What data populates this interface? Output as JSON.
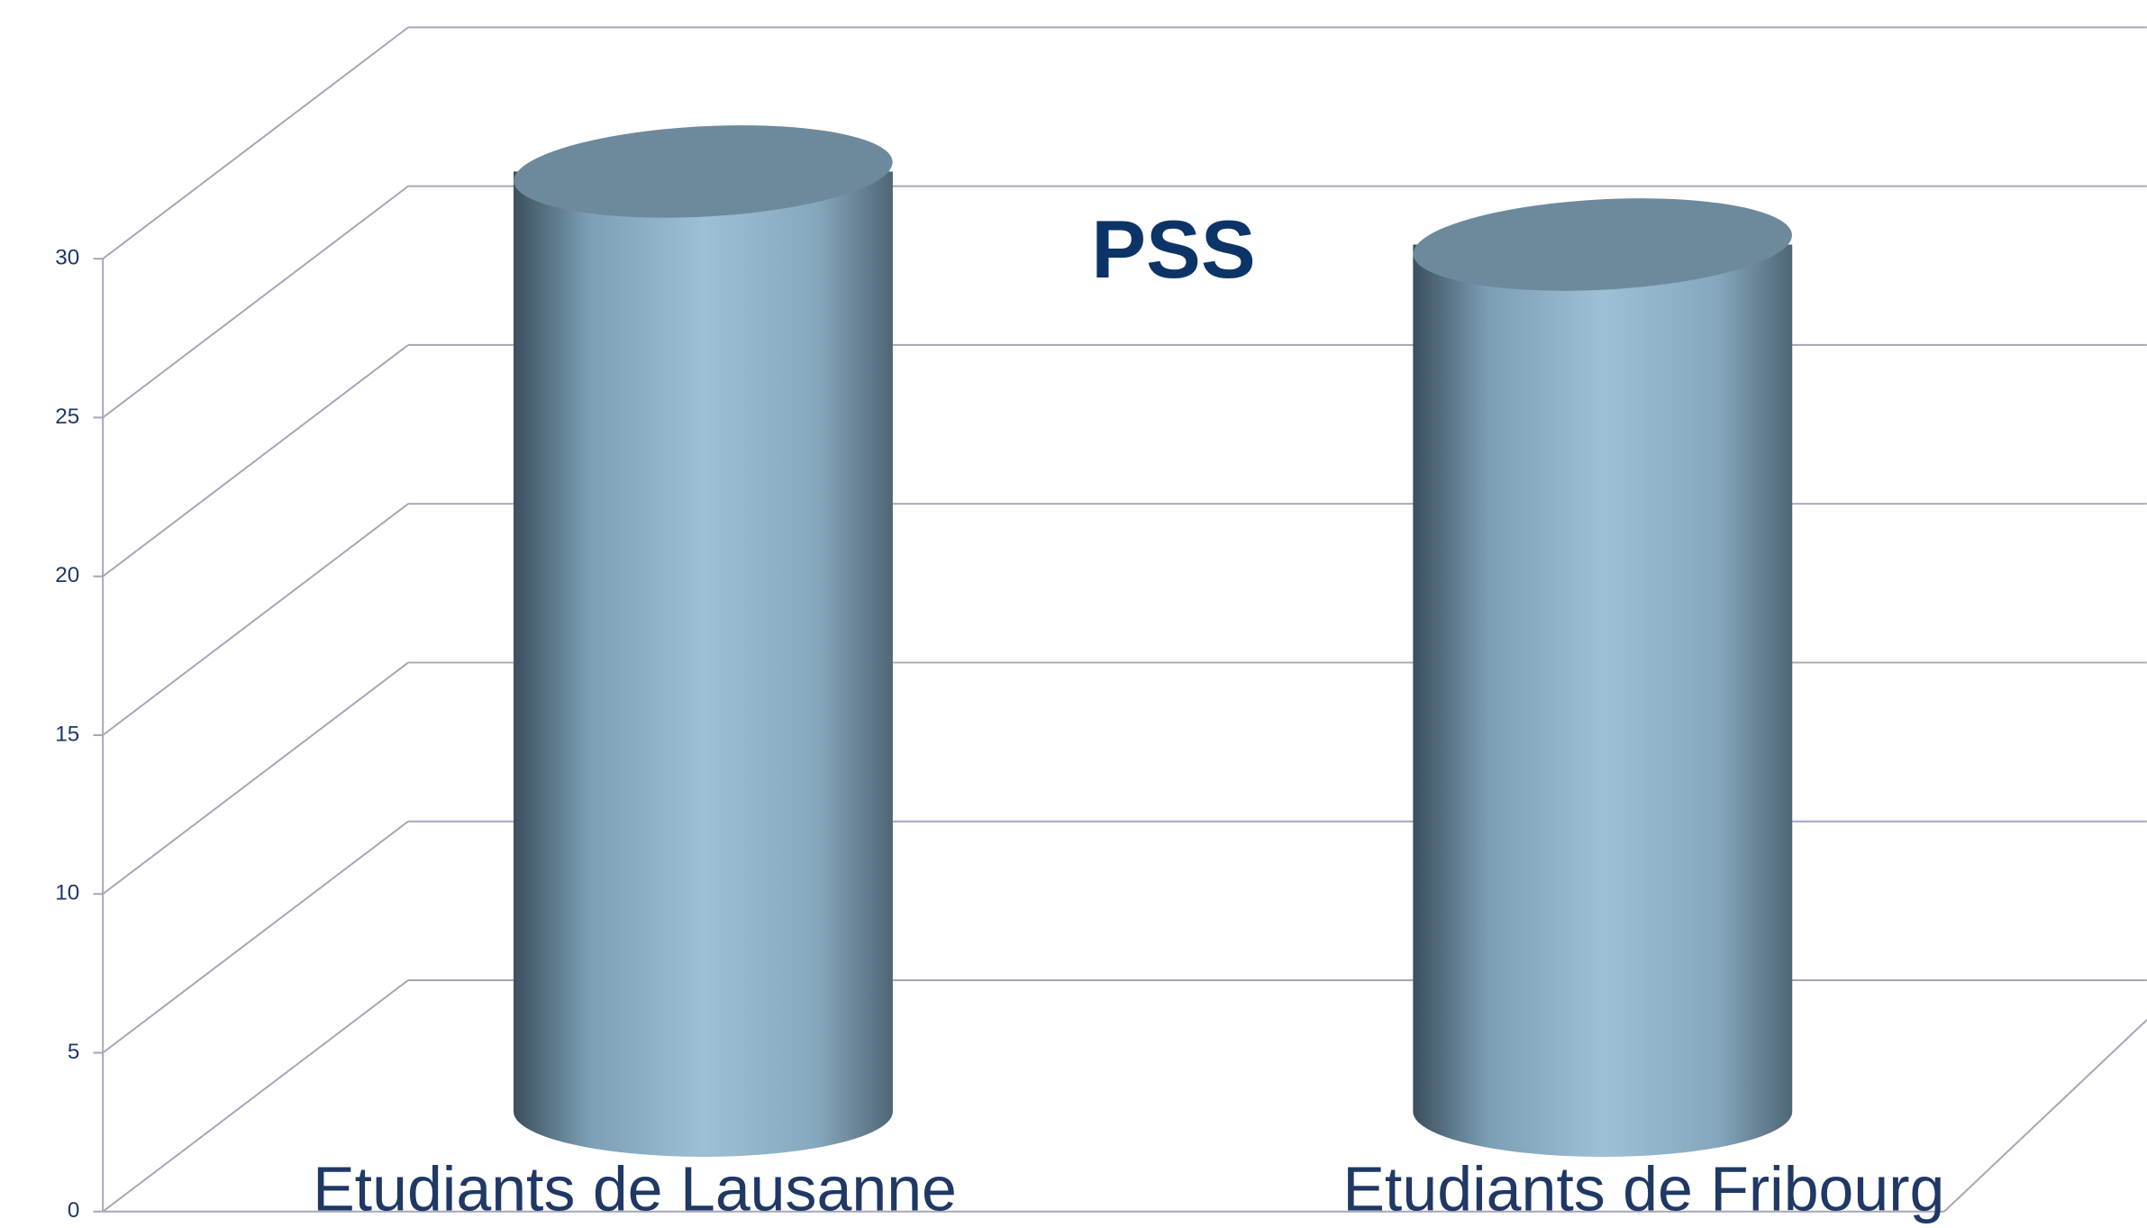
{
  "chart_data": {
    "type": "bar",
    "title": "PSS",
    "categories": [
      "Etudiants de Lausanne",
      "Etudiants de Fribourg"
    ],
    "values": [
      29.6,
      27.3
    ],
    "color": "#9dc0d6",
    "ylim": [
      0,
      30
    ],
    "yticks": [
      0,
      5,
      10,
      15,
      20,
      25,
      30
    ],
    "grid": true
  }
}
